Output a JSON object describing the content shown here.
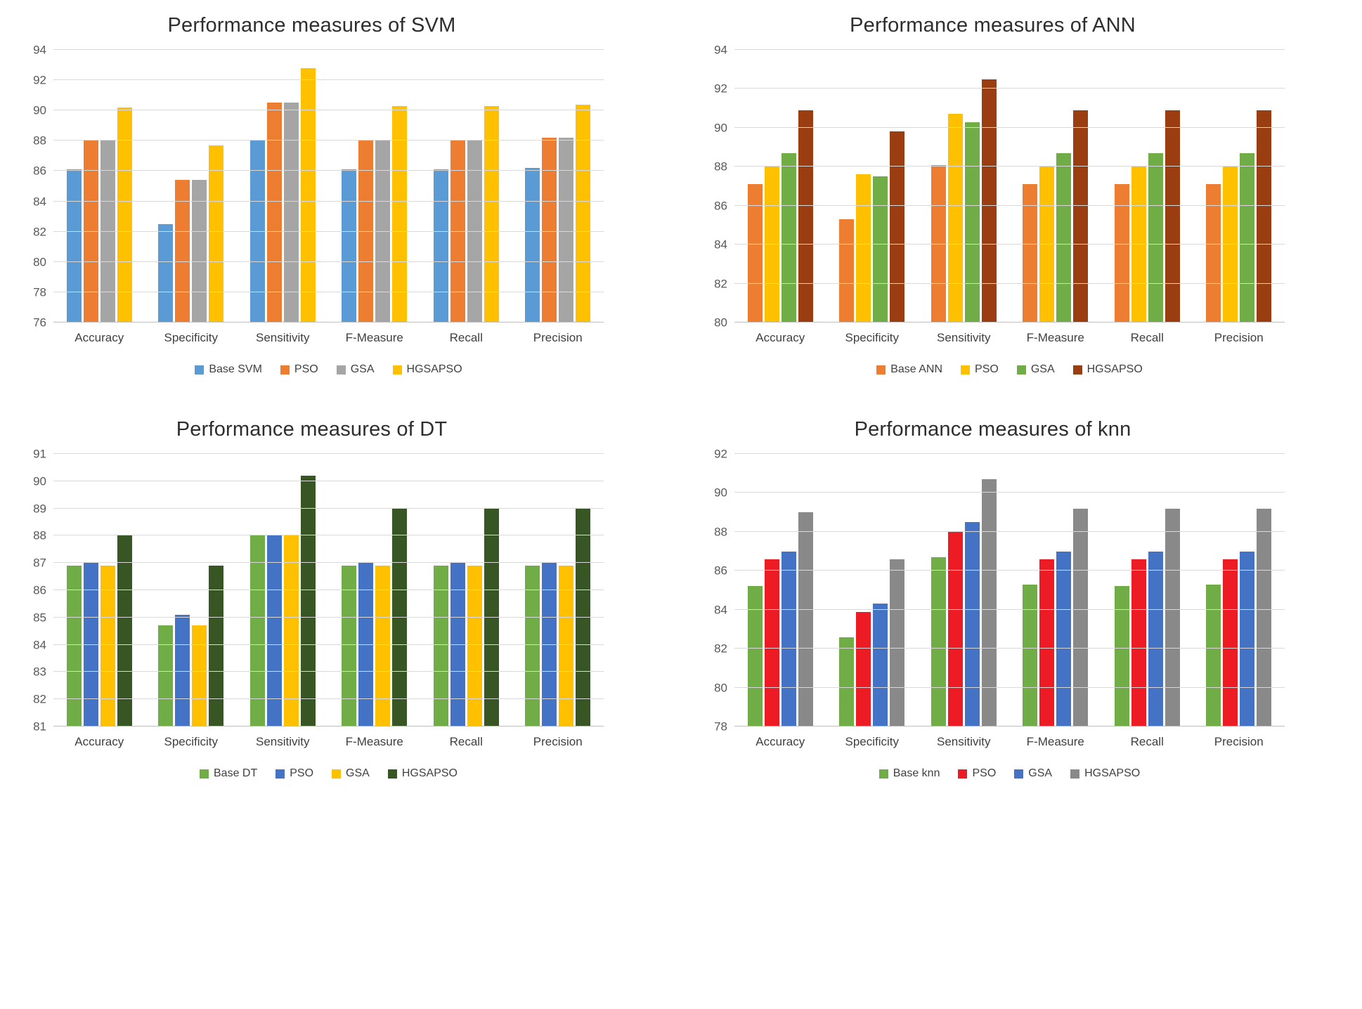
{
  "chart_data": [
    {
      "type": "bar",
      "title": "Performance measures of SVM",
      "categories": [
        "Accuracy",
        "Specificity",
        "Sensitivity",
        "F-Measure",
        "Recall",
        "Precision"
      ],
      "ylim": [
        76,
        94
      ],
      "ytick_step": 2,
      "grid": true,
      "legend_position": "bottom",
      "series": [
        {
          "name": "Base SVM",
          "color": "#5B9BD5",
          "values": [
            86.1,
            82.5,
            88.0,
            86.1,
            86.1,
            86.2
          ]
        },
        {
          "name": "PSO",
          "color": "#ED7D31",
          "values": [
            88.0,
            85.4,
            90.5,
            88.0,
            88.0,
            88.2
          ]
        },
        {
          "name": "GSA",
          "color": "#A5A5A5",
          "values": [
            88.0,
            85.4,
            90.5,
            88.0,
            88.0,
            88.2
          ]
        },
        {
          "name": "HGSAPSO",
          "color": "#FFC000",
          "values": [
            90.2,
            87.7,
            92.8,
            90.3,
            90.3,
            90.4
          ]
        }
      ]
    },
    {
      "type": "bar",
      "title": "Performance measures of ANN",
      "categories": [
        "Accuracy",
        "Specificity",
        "Sensitivity",
        "F-Measure",
        "Recall",
        "Precision"
      ],
      "ylim": [
        80,
        94
      ],
      "ytick_step": 2,
      "grid": true,
      "legend_position": "bottom",
      "series": [
        {
          "name": "Base ANN",
          "color": "#ED7D31",
          "values": [
            87.1,
            85.3,
            88.1,
            87.1,
            87.1,
            87.1
          ]
        },
        {
          "name": "PSO",
          "color": "#FFC000",
          "values": [
            88.0,
            87.6,
            90.7,
            88.0,
            88.0,
            88.0
          ]
        },
        {
          "name": "GSA",
          "color": "#70AD47",
          "values": [
            88.7,
            87.5,
            90.3,
            88.7,
            88.7,
            88.7
          ]
        },
        {
          "name": "HGSAPSO",
          "color": "#9A3E12",
          "values": [
            90.9,
            89.8,
            92.5,
            90.9,
            90.9,
            90.9
          ]
        }
      ]
    },
    {
      "type": "bar",
      "title": "Performance measures of DT",
      "categories": [
        "Accuracy",
        "Specificity",
        "Sensitivity",
        "F-Measure",
        "Recall",
        "Precision"
      ],
      "ylim": [
        81,
        91
      ],
      "ytick_step": 1,
      "grid": true,
      "legend_position": "bottom",
      "series": [
        {
          "name": "Base DT",
          "color": "#70AD47",
          "values": [
            86.9,
            84.7,
            88.0,
            86.9,
            86.9,
            86.9
          ]
        },
        {
          "name": "PSO",
          "color": "#4472C4",
          "values": [
            87.0,
            85.1,
            88.0,
            87.0,
            87.0,
            87.0
          ]
        },
        {
          "name": "GSA",
          "color": "#FFC000",
          "values": [
            86.9,
            84.7,
            88.0,
            86.9,
            86.9,
            86.9
          ]
        },
        {
          "name": "HGSAPSO",
          "color": "#375623",
          "values": [
            88.0,
            86.9,
            90.2,
            89.0,
            89.0,
            89.0
          ]
        }
      ]
    },
    {
      "type": "bar",
      "title": "Performance measures of knn",
      "categories": [
        "Accuracy",
        "Specificity",
        "Sensitivity",
        "F-Measure",
        "Recall",
        "Precision"
      ],
      "ylim": [
        78,
        92
      ],
      "ytick_step": 2,
      "grid": true,
      "legend_position": "bottom",
      "series": [
        {
          "name": "Base knn",
          "color": "#70AD47",
          "values": [
            85.2,
            82.6,
            86.7,
            85.3,
            85.2,
            85.3
          ]
        },
        {
          "name": "PSO",
          "color": "#ED1C24",
          "values": [
            86.6,
            83.9,
            88.0,
            86.6,
            86.6,
            86.6
          ]
        },
        {
          "name": "GSA",
          "color": "#4472C4",
          "values": [
            87.0,
            84.3,
            88.5,
            87.0,
            87.0,
            87.0
          ]
        },
        {
          "name": "HGSAPSO",
          "color": "#898989",
          "values": [
            89.0,
            86.6,
            90.7,
            89.2,
            89.2,
            89.2
          ]
        }
      ]
    }
  ]
}
